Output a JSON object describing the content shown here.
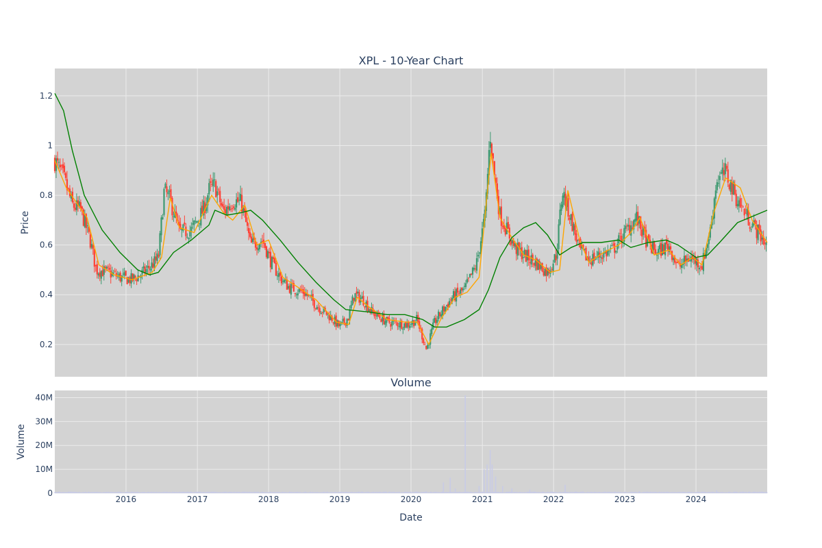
{
  "chart_data": {
    "type": "candlestick",
    "title": "XPL - 10-Year Chart",
    "volume_title": "Volume",
    "xlabel": "Date",
    "ylabel_price": "Price",
    "ylabel_volume": "Volume",
    "x_range": [
      "2015-01-01",
      "2024-12-31"
    ],
    "x_ticks": [
      "2016",
      "2017",
      "2018",
      "2019",
      "2020",
      "2021",
      "2022",
      "2023",
      "2024"
    ],
    "price_ylim": [
      0.07,
      1.31
    ],
    "price_ticks": [
      "0.2",
      "0.4",
      "0.6",
      "0.8",
      "1",
      "1.2"
    ],
    "volume_ylim": [
      0,
      43000000
    ],
    "volume_ticks": [
      "0",
      "10M",
      "20M",
      "30M",
      "40M"
    ],
    "grid": true,
    "colors": {
      "up": "#3d9970",
      "down": "#ff4136",
      "ma_short": "#ffa500",
      "ma_long": "#008000",
      "volume": "#c8cbe6",
      "plot_bg": "#d3d3d3",
      "grid": "#ebebeb"
    },
    "series": [
      {
        "kind": "price_close_approx",
        "points": [
          [
            "2015-01-01",
            0.94
          ],
          [
            "2015-02-15",
            0.87
          ],
          [
            "2015-04-01",
            0.76
          ],
          [
            "2015-05-15",
            0.74
          ],
          [
            "2015-07-01",
            0.62
          ],
          [
            "2015-08-01",
            0.5
          ],
          [
            "2015-10-01",
            0.49
          ],
          [
            "2015-12-01",
            0.47
          ],
          [
            "2016-02-01",
            0.46
          ],
          [
            "2016-04-01",
            0.49
          ],
          [
            "2016-05-15",
            0.52
          ],
          [
            "2016-06-15",
            0.55
          ],
          [
            "2016-07-15",
            0.82
          ],
          [
            "2016-08-15",
            0.78
          ],
          [
            "2016-10-01",
            0.65
          ],
          [
            "2016-12-01",
            0.66
          ],
          [
            "2017-02-01",
            0.74
          ],
          [
            "2017-03-01",
            0.82
          ],
          [
            "2017-04-01",
            0.84
          ],
          [
            "2017-05-15",
            0.73
          ],
          [
            "2017-07-01",
            0.78
          ],
          [
            "2017-08-15",
            0.77
          ],
          [
            "2017-10-01",
            0.6
          ],
          [
            "2017-12-01",
            0.62
          ],
          [
            "2018-01-15",
            0.53
          ],
          [
            "2018-03-01",
            0.47
          ],
          [
            "2018-04-15",
            0.43
          ],
          [
            "2018-07-01",
            0.41
          ],
          [
            "2018-09-01",
            0.36
          ],
          [
            "2018-11-15",
            0.31
          ],
          [
            "2019-01-01",
            0.27
          ],
          [
            "2019-02-15",
            0.31
          ],
          [
            "2019-03-15",
            0.4
          ],
          [
            "2019-05-01",
            0.38
          ],
          [
            "2019-06-15",
            0.33
          ],
          [
            "2019-09-01",
            0.29
          ],
          [
            "2019-12-15",
            0.28
          ],
          [
            "2020-02-01",
            0.3
          ],
          [
            "2020-03-20",
            0.18
          ],
          [
            "2020-05-01",
            0.29
          ],
          [
            "2020-06-15",
            0.34
          ],
          [
            "2020-08-01",
            0.39
          ],
          [
            "2020-10-01",
            0.42
          ],
          [
            "2020-12-01",
            0.52
          ],
          [
            "2021-01-15",
            0.72
          ],
          [
            "2021-02-10",
            1.05
          ],
          [
            "2021-03-01",
            0.9
          ],
          [
            "2021-04-01",
            0.72
          ],
          [
            "2021-05-01",
            0.67
          ],
          [
            "2021-06-15",
            0.59
          ],
          [
            "2021-08-01",
            0.56
          ],
          [
            "2021-10-01",
            0.53
          ],
          [
            "2021-12-01",
            0.49
          ],
          [
            "2022-01-15",
            0.56
          ],
          [
            "2022-02-15",
            0.82
          ],
          [
            "2022-04-01",
            0.7
          ],
          [
            "2022-05-15",
            0.58
          ],
          [
            "2022-07-01",
            0.54
          ],
          [
            "2022-09-01",
            0.56
          ],
          [
            "2022-11-01",
            0.58
          ],
          [
            "2023-01-01",
            0.65
          ],
          [
            "2023-03-01",
            0.71
          ],
          [
            "2023-05-01",
            0.6
          ],
          [
            "2023-06-15",
            0.57
          ],
          [
            "2023-08-15",
            0.6
          ],
          [
            "2023-10-01",
            0.51
          ],
          [
            "2023-12-01",
            0.55
          ],
          [
            "2024-02-01",
            0.52
          ],
          [
            "2024-03-15",
            0.66
          ],
          [
            "2024-04-15",
            0.86
          ],
          [
            "2024-06-01",
            0.89
          ],
          [
            "2024-08-01",
            0.78
          ],
          [
            "2024-10-01",
            0.7
          ],
          [
            "2024-12-31",
            0.6
          ]
        ]
      },
      {
        "kind": "ma_short",
        "color": "#ffa500",
        "points": [
          [
            "2015-01-01",
            0.94
          ],
          [
            "2015-03-01",
            0.83
          ],
          [
            "2015-05-01",
            0.76
          ],
          [
            "2015-06-15",
            0.71
          ],
          [
            "2015-08-15",
            0.52
          ],
          [
            "2015-11-01",
            0.48
          ],
          [
            "2016-02-01",
            0.46
          ],
          [
            "2016-05-15",
            0.49
          ],
          [
            "2016-07-01",
            0.55
          ],
          [
            "2016-08-15",
            0.79
          ],
          [
            "2016-10-01",
            0.67
          ],
          [
            "2016-12-15",
            0.65
          ],
          [
            "2017-03-15",
            0.8
          ],
          [
            "2017-05-15",
            0.73
          ],
          [
            "2017-07-01",
            0.7
          ],
          [
            "2017-09-01",
            0.76
          ],
          [
            "2017-11-01",
            0.6
          ],
          [
            "2018-01-01",
            0.62
          ],
          [
            "2018-03-15",
            0.47
          ],
          [
            "2018-06-01",
            0.43
          ],
          [
            "2018-09-01",
            0.38
          ],
          [
            "2018-12-15",
            0.29
          ],
          [
            "2019-02-15",
            0.28
          ],
          [
            "2019-04-01",
            0.39
          ],
          [
            "2019-06-01",
            0.35
          ],
          [
            "2019-09-01",
            0.3
          ],
          [
            "2019-12-01",
            0.29
          ],
          [
            "2020-02-01",
            0.29
          ],
          [
            "2020-04-01",
            0.2
          ],
          [
            "2020-06-01",
            0.3
          ],
          [
            "2020-08-15",
            0.39
          ],
          [
            "2020-10-15",
            0.41
          ],
          [
            "2020-12-15",
            0.47
          ],
          [
            "2021-02-15",
            0.97
          ],
          [
            "2021-04-01",
            0.71
          ],
          [
            "2021-06-01",
            0.63
          ],
          [
            "2021-08-01",
            0.56
          ],
          [
            "2021-10-01",
            0.54
          ],
          [
            "2021-12-15",
            0.49
          ],
          [
            "2022-02-01",
            0.5
          ],
          [
            "2022-03-15",
            0.82
          ],
          [
            "2022-05-15",
            0.62
          ],
          [
            "2022-07-01",
            0.53
          ],
          [
            "2022-09-15",
            0.57
          ],
          [
            "2022-12-01",
            0.6
          ],
          [
            "2023-02-01",
            0.65
          ],
          [
            "2023-03-20",
            0.71
          ],
          [
            "2023-06-01",
            0.56
          ],
          [
            "2023-08-15",
            0.58
          ],
          [
            "2023-10-15",
            0.52
          ],
          [
            "2023-12-15",
            0.55
          ],
          [
            "2024-02-01",
            0.52
          ],
          [
            "2024-04-01",
            0.73
          ],
          [
            "2024-06-01",
            0.87
          ],
          [
            "2024-08-15",
            0.83
          ],
          [
            "2024-10-15",
            0.7
          ],
          [
            "2024-12-31",
            0.61
          ]
        ]
      },
      {
        "kind": "ma_long",
        "color": "#008000",
        "points": [
          [
            "2015-01-01",
            1.21
          ],
          [
            "2015-02-15",
            1.14
          ],
          [
            "2015-04-01",
            0.98
          ],
          [
            "2015-06-01",
            0.8
          ],
          [
            "2015-09-01",
            0.66
          ],
          [
            "2015-12-01",
            0.57
          ],
          [
            "2016-03-01",
            0.5
          ],
          [
            "2016-05-01",
            0.48
          ],
          [
            "2016-06-15",
            0.49
          ],
          [
            "2016-09-01",
            0.57
          ],
          [
            "2016-12-01",
            0.62
          ],
          [
            "2017-03-01",
            0.68
          ],
          [
            "2017-04-01",
            0.74
          ],
          [
            "2017-06-01",
            0.72
          ],
          [
            "2017-08-15",
            0.73
          ],
          [
            "2017-10-01",
            0.74
          ],
          [
            "2017-12-01",
            0.7
          ],
          [
            "2018-03-01",
            0.62
          ],
          [
            "2018-06-01",
            0.53
          ],
          [
            "2018-09-01",
            0.45
          ],
          [
            "2018-12-01",
            0.38
          ],
          [
            "2019-02-01",
            0.34
          ],
          [
            "2019-06-01",
            0.33
          ],
          [
            "2019-09-01",
            0.32
          ],
          [
            "2019-12-01",
            0.32
          ],
          [
            "2020-03-01",
            0.3
          ],
          [
            "2020-05-01",
            0.27
          ],
          [
            "2020-07-01",
            0.27
          ],
          [
            "2020-10-01",
            0.3
          ],
          [
            "2020-12-15",
            0.34
          ],
          [
            "2021-02-01",
            0.42
          ],
          [
            "2021-04-01",
            0.55
          ],
          [
            "2021-06-01",
            0.63
          ],
          [
            "2021-08-01",
            0.67
          ],
          [
            "2021-10-01",
            0.69
          ],
          [
            "2021-12-01",
            0.64
          ],
          [
            "2022-02-01",
            0.56
          ],
          [
            "2022-04-01",
            0.59
          ],
          [
            "2022-06-01",
            0.61
          ],
          [
            "2022-09-01",
            0.61
          ],
          [
            "2022-12-01",
            0.62
          ],
          [
            "2023-02-01",
            0.59
          ],
          [
            "2023-05-01",
            0.61
          ],
          [
            "2023-08-01",
            0.62
          ],
          [
            "2023-10-01",
            0.6
          ],
          [
            "2024-01-01",
            0.55
          ],
          [
            "2024-03-01",
            0.56
          ],
          [
            "2024-05-01",
            0.61
          ],
          [
            "2024-08-01",
            0.69
          ],
          [
            "2024-12-31",
            0.74
          ]
        ]
      },
      {
        "kind": "volume",
        "color": "#c8cbe6",
        "points": [
          [
            "2015-03-01",
            400000
          ],
          [
            "2016-06-15",
            400000
          ],
          [
            "2017-02-01",
            500000
          ],
          [
            "2018-06-01",
            300000
          ],
          [
            "2019-03-15",
            400000
          ],
          [
            "2020-03-20",
            800000
          ],
          [
            "2020-06-15",
            4500000
          ],
          [
            "2020-07-20",
            6500000
          ],
          [
            "2020-08-15",
            2000000
          ],
          [
            "2020-10-05",
            41000000
          ],
          [
            "2020-12-15",
            3000000
          ],
          [
            "2021-01-10",
            10000000
          ],
          [
            "2021-01-25",
            12000000
          ],
          [
            "2021-02-10",
            18000000
          ],
          [
            "2021-02-20",
            12000000
          ],
          [
            "2021-03-10",
            7000000
          ],
          [
            "2021-04-15",
            3000000
          ],
          [
            "2021-06-01",
            2000000
          ],
          [
            "2021-09-01",
            1500000
          ],
          [
            "2022-03-01",
            3500000
          ],
          [
            "2022-06-01",
            800000
          ],
          [
            "2023-03-15",
            800000
          ],
          [
            "2024-04-15",
            1200000
          ],
          [
            "2024-10-01",
            600000
          ]
        ]
      }
    ]
  }
}
